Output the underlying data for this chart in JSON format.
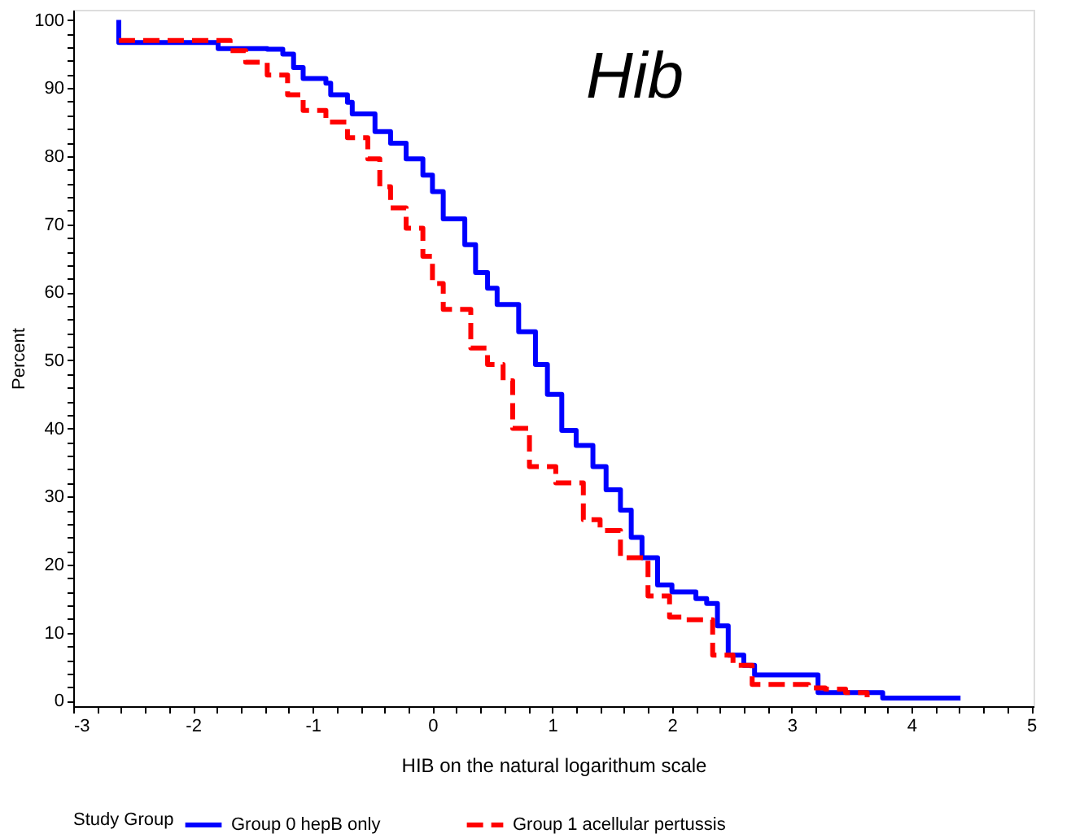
{
  "chart_data": {
    "type": "step",
    "title": "Hib",
    "xlabel": "HIB on the natural logarithum scale",
    "ylabel": "Percent",
    "legend_title": "Study Group",
    "legend": "bottom",
    "grid": false,
    "xlim": [
      -3,
      5.02
    ],
    "ylim": [
      -0.8,
      101.5
    ],
    "xticks": [
      -3,
      {
        "value": -2.8,
        "label": null
      },
      {
        "value": -2.6,
        "label": null
      },
      {
        "value": -2.4,
        "label": null
      },
      {
        "value": -2.2,
        "label": null
      },
      -2,
      {
        "value": -1.8,
        "label": null
      },
      {
        "value": -1.6,
        "label": null
      },
      {
        "value": -1.4,
        "label": null
      },
      {
        "value": -1.2,
        "label": null
      },
      -1,
      {
        "value": -0.8,
        "label": null
      },
      {
        "value": -0.6,
        "label": null
      },
      {
        "value": -0.4,
        "label": null
      },
      {
        "value": -0.2,
        "label": null
      },
      0,
      {
        "value": 0.2,
        "label": null
      },
      {
        "value": 0.4,
        "label": null
      },
      {
        "value": 0.6,
        "label": null
      },
      {
        "value": 0.8,
        "label": null
      },
      1,
      {
        "value": 1.2,
        "label": null
      },
      {
        "value": 1.4,
        "label": null
      },
      {
        "value": 1.6,
        "label": null
      },
      {
        "value": 1.8,
        "label": null
      },
      2,
      {
        "value": 2.2,
        "label": null
      },
      {
        "value": 2.4,
        "label": null
      },
      {
        "value": 2.6,
        "label": null
      },
      {
        "value": 2.8,
        "label": null
      },
      3,
      {
        "value": 3.2,
        "label": null
      },
      {
        "value": 3.4,
        "label": null
      },
      {
        "value": 3.6,
        "label": null
      },
      {
        "value": 3.8,
        "label": null
      },
      4,
      {
        "value": 4.2,
        "label": null
      },
      {
        "value": 4.4,
        "label": null
      },
      {
        "value": 4.6,
        "label": null
      },
      {
        "value": 4.8,
        "label": null
      },
      5
    ],
    "yticks": [
      0,
      {
        "value": 2,
        "label": null
      },
      {
        "value": 4,
        "label": null
      },
      {
        "value": 6,
        "label": null
      },
      {
        "value": 8,
        "label": null
      },
      10,
      {
        "value": 12,
        "label": null
      },
      {
        "value": 14,
        "label": null
      },
      {
        "value": 16,
        "label": null
      },
      {
        "value": 18,
        "label": null
      },
      20,
      {
        "value": 22,
        "label": null
      },
      {
        "value": 24,
        "label": null
      },
      {
        "value": 26,
        "label": null
      },
      {
        "value": 28,
        "label": null
      },
      30,
      {
        "value": 32,
        "label": null
      },
      {
        "value": 34,
        "label": null
      },
      {
        "value": 36,
        "label": null
      },
      {
        "value": 38,
        "label": null
      },
      40,
      {
        "value": 42,
        "label": null
      },
      {
        "value": 44,
        "label": null
      },
      {
        "value": 46,
        "label": null
      },
      {
        "value": 48,
        "label": null
      },
      50,
      {
        "value": 52,
        "label": null
      },
      {
        "value": 54,
        "label": null
      },
      {
        "value": 56,
        "label": null
      },
      {
        "value": 58,
        "label": null
      },
      60,
      {
        "value": 62,
        "label": null
      },
      {
        "value": 64,
        "label": null
      },
      {
        "value": 66,
        "label": null
      },
      {
        "value": 68,
        "label": null
      },
      70,
      {
        "value": 72,
        "label": null
      },
      {
        "value": 74,
        "label": null
      },
      {
        "value": 76,
        "label": null
      },
      {
        "value": 78,
        "label": null
      },
      80,
      {
        "value": 82,
        "label": null
      },
      {
        "value": 84,
        "label": null
      },
      {
        "value": 86,
        "label": null
      },
      {
        "value": 88,
        "label": null
      },
      90,
      {
        "value": 92,
        "label": null
      },
      {
        "value": 94,
        "label": null
      },
      {
        "value": 96,
        "label": null
      },
      {
        "value": 98,
        "label": null
      },
      100
    ],
    "series": [
      {
        "name": "Group 0   hepB only",
        "color": "#0000ff",
        "line_style": "solid",
        "x": [
          -2.62,
          -2.62,
          -1.79,
          -1.38,
          -1.25,
          -1.16,
          -1.08,
          -0.89,
          -0.85,
          -0.71,
          -0.67,
          -0.48,
          -0.35,
          -0.22,
          -0.08,
          0,
          0.09,
          0.27,
          0.36,
          0.46,
          0.54,
          0.72,
          0.86,
          0.96,
          1.08,
          1.2,
          1.34,
          1.45,
          1.57,
          1.66,
          1.75,
          1.88,
          2.0,
          2.2,
          2.29,
          2.38,
          2.47,
          2.6,
          2.69,
          3.22,
          3.76,
          4.41
        ],
        "values": [
          100,
          96.7,
          95.8,
          95.7,
          95,
          93,
          91.4,
          90.7,
          89,
          87.9,
          86.2,
          83.6,
          81.9,
          79.6,
          77.2,
          74.8,
          70.8,
          67,
          62.9,
          60.6,
          58.2,
          54.2,
          49.4,
          45,
          39.7,
          37.5,
          34.4,
          31,
          28,
          24,
          21,
          17,
          16,
          15,
          14.3,
          11,
          6.7,
          5.2,
          3.8,
          1.2,
          0.4,
          0.4
        ]
      },
      {
        "name": "Group 1   acellular pertussis",
        "color": "#ff0000",
        "line_style": "dashed",
        "x": [
          -2.62,
          -1.69,
          -1.56,
          -1.38,
          -1.21,
          -1.08,
          -0.89,
          -0.71,
          -0.54,
          -0.44,
          -0.35,
          -0.22,
          -0.08,
          0,
          0.09,
          0.32,
          0.46,
          0.59,
          0.67,
          0.81,
          1.03,
          1.26,
          1.4,
          1.57,
          1.8,
          1.98,
          2.11,
          2.34,
          2.51,
          2.67,
          3.14,
          3.28,
          3.45,
          3.63,
          3.63
        ],
        "values": [
          97,
          95.5,
          93.8,
          91.9,
          89,
          86.7,
          85,
          82.7,
          79.6,
          75.5,
          72.4,
          69.4,
          65.3,
          61.3,
          57.5,
          51.8,
          49.4,
          47,
          40,
          34.4,
          32,
          26.6,
          25,
          21,
          15.4,
          12.3,
          11.9,
          6.7,
          5.2,
          2.4,
          1.9,
          1.7,
          1.2,
          0.5,
          0.5
        ]
      }
    ]
  }
}
